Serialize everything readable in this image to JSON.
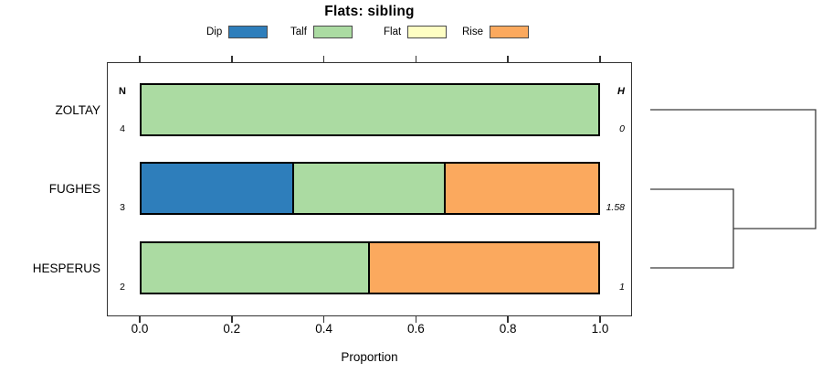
{
  "title": "Flats: sibling",
  "legend": {
    "items": [
      {
        "label": "Dip",
        "color": "#2E7EBB"
      },
      {
        "label": "Talf",
        "color": "#ABDBA2"
      },
      {
        "label": "Flat",
        "color": "#FEFEC3"
      },
      {
        "label": "Rise",
        "color": "#FBA95E"
      }
    ]
  },
  "columns": {
    "n_header": "N",
    "h_header": "H"
  },
  "axis": {
    "label": "Proportion",
    "ticks": [
      "0.0",
      "0.2",
      "0.4",
      "0.6",
      "0.8",
      "1.0"
    ],
    "range": [
      0,
      1
    ]
  },
  "chart_data": {
    "type": "bar",
    "stacked": true,
    "orientation": "horizontal",
    "title": "Flats: sibling",
    "xlabel": "Proportion",
    "xlim": [
      0,
      1
    ],
    "xticks": [
      0.0,
      0.2,
      0.4,
      0.6,
      0.8,
      1.0
    ],
    "categories": [
      "ZOLTAY",
      "FUGHES",
      "HESPERUS"
    ],
    "series": [
      {
        "name": "Dip",
        "color": "#2E7EBB",
        "values": [
          0,
          0.3333,
          0
        ]
      },
      {
        "name": "Talf",
        "color": "#ABDBA2",
        "values": [
          1,
          0.3333,
          0.5
        ]
      },
      {
        "name": "Flat",
        "color": "#FEFEC3",
        "values": [
          0,
          0,
          0
        ]
      },
      {
        "name": "Rise",
        "color": "#FBA95E",
        "values": [
          0,
          0.3334,
          0.5
        ]
      }
    ],
    "n_values": [
      "4",
      "3",
      "2"
    ],
    "h_values": [
      "0",
      "1.58",
      "1"
    ],
    "legend_position": "top",
    "grid": false,
    "dendrogram": {
      "leaf_order": [
        "ZOLTAY",
        "FUGHES",
        "HESPERUS"
      ],
      "merges": [
        "FUGHES+HESPERUS merge first",
        "ZOLTAY joins at root"
      ]
    }
  }
}
